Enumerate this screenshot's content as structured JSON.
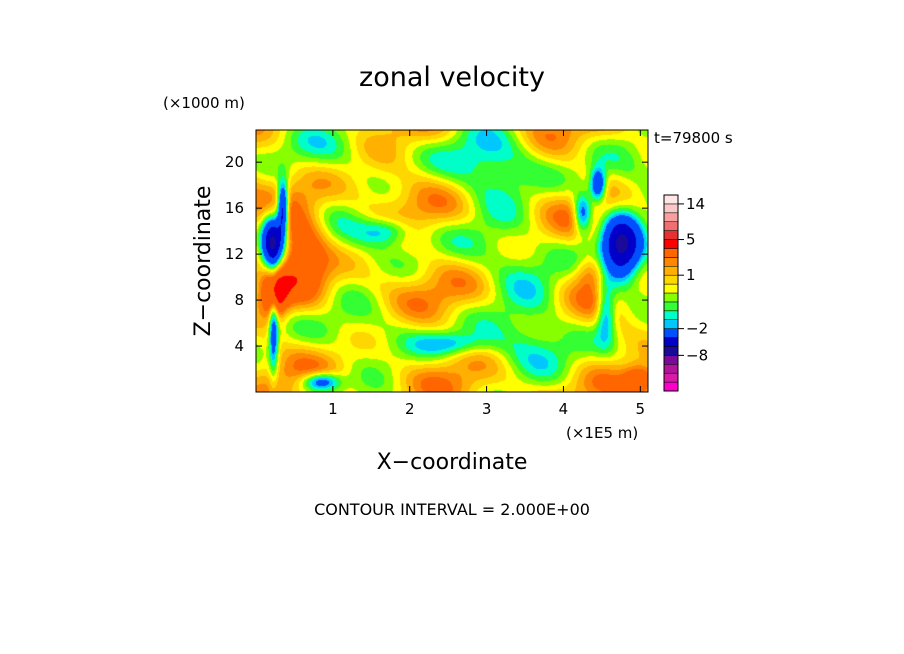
{
  "chart_data": {
    "type": "heatmap",
    "title": "zonal velocity",
    "xlabel": "X−coordinate",
    "ylabel": "Z−coordinate",
    "x_unit": "(×1E5 m)",
    "y_unit": "(×1000 m)",
    "time_label": "t=79800 s",
    "footer": "CONTOUR INTERVAL = 2.000E+00",
    "xlim": [
      0,
      5.1
    ],
    "ylim": [
      0,
      22.8
    ],
    "x_ticks": [
      {
        "value": 1,
        "label": "1"
      },
      {
        "value": 2,
        "label": "2"
      },
      {
        "value": 3,
        "label": "3"
      },
      {
        "value": 4,
        "label": "4"
      },
      {
        "value": 5,
        "label": "5"
      }
    ],
    "y_ticks": [
      {
        "value": 4,
        "label": "4"
      },
      {
        "value": 8,
        "label": "8"
      },
      {
        "value": 12,
        "label": "12"
      },
      {
        "value": 16,
        "label": "16"
      },
      {
        "value": 20,
        "label": "20"
      }
    ],
    "colorbar": {
      "levels": [
        -16,
        -14,
        -12,
        -10,
        -8,
        -6,
        -4,
        -2,
        -1.5,
        -1,
        -0.5,
        0,
        0.5,
        1,
        1.5,
        2,
        4,
        6,
        8,
        10,
        12,
        14,
        16
      ],
      "colors": [
        "#ff00cc",
        "#d81aa8",
        "#b0149c",
        "#7a0a9a",
        "#1a0a9a",
        "#0000c8",
        "#0050ff",
        "#00c8ff",
        "#00ffc8",
        "#33ff33",
        "#88ff00",
        "#ffff00",
        "#ffd700",
        "#ffb000",
        "#ff8800",
        "#ff6600",
        "#ff0000",
        "#e83030",
        "#f07070",
        "#f8a0a0",
        "#fbc8c8",
        "#fde6e6"
      ],
      "labels": [
        {
          "value": 14,
          "label": "14"
        },
        {
          "value": 5,
          "label": "5"
        },
        {
          "value": 1,
          "label": "1"
        },
        {
          "value": -2,
          "label": "−2"
        },
        {
          "value": -8,
          "label": "−8"
        }
      ]
    }
  }
}
